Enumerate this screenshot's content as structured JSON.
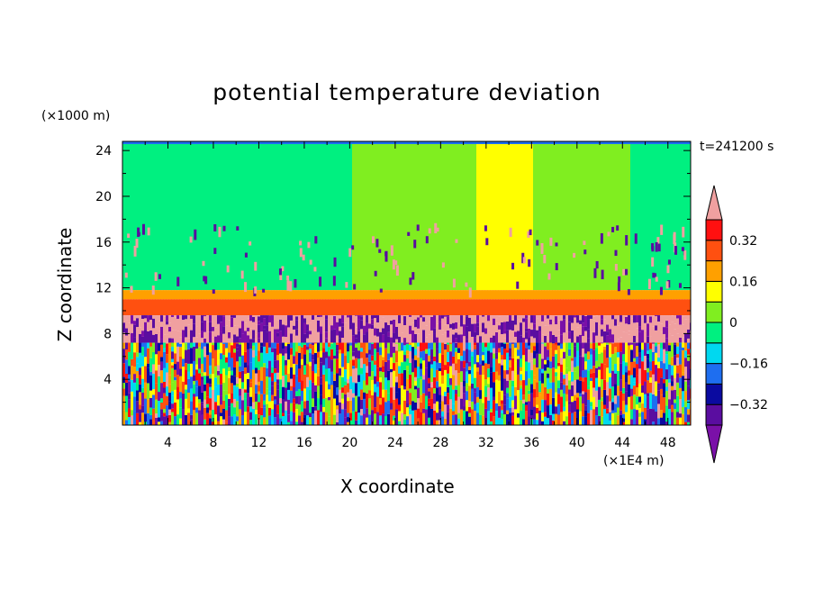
{
  "chart_data": {
    "type": "heatmap",
    "title": "potential temperature deviation",
    "xlabel": "X coordinate",
    "ylabel": "Z coordinate",
    "x_unit": "(×1E4 m)",
    "y_unit": "(×1000 m)",
    "time_label": "t=241200 s",
    "xlim": [
      0,
      50
    ],
    "ylim": [
      0,
      24.8
    ],
    "x_ticks": [
      4,
      8,
      12,
      16,
      20,
      24,
      28,
      32,
      36,
      40,
      44,
      48
    ],
    "y_ticks": [
      4,
      8,
      12,
      16,
      20,
      24
    ],
    "colorbar": {
      "levels": [
        -0.4,
        -0.32,
        -0.24,
        -0.16,
        -0.08,
        0,
        0.08,
        0.16,
        0.24,
        0.32,
        0.4
      ],
      "labels": [
        "0.32",
        "0.16",
        "0",
        "−0.16",
        "−0.32"
      ],
      "label_values": [
        0.32,
        0.16,
        0,
        -0.16,
        -0.32
      ],
      "colors": [
        "#7a10a8",
        "#5a0da0",
        "#0a0aa0",
        "#1e6ef0",
        "#00d8f0",
        "#00f080",
        "#80ee20",
        "#ffff00",
        "#ffa000",
        "#ff5010",
        "#ff1010",
        "#f0a0a0"
      ],
      "extend": "both"
    },
    "layers": [
      {
        "z_range": [
          0,
          7.2
        ],
        "description_value": "mixed",
        "values": [
          -0.4,
          0.4
        ]
      },
      {
        "z_range": [
          7.2,
          9.6
        ],
        "values": [
          0.4,
          -0.4
        ]
      },
      {
        "z_range": [
          9.6,
          11.0
        ],
        "values": [
          0.24,
          0.32
        ]
      },
      {
        "z_range": [
          11.0,
          11.8
        ],
        "values": [
          0.16,
          0.24
        ]
      },
      {
        "z_range": [
          11.8,
          24.8
        ],
        "values": [
          -0.08,
          0.16
        ]
      }
    ],
    "upper_columns": [
      {
        "x_range": [
          0,
          20
        ],
        "value": -0.04
      },
      {
        "x_range": [
          20,
          31
        ],
        "value": 0.04
      },
      {
        "x_range": [
          31,
          36
        ],
        "value": 0.12
      },
      {
        "x_range": [
          36,
          44.5
        ],
        "value": 0.04
      },
      {
        "x_range": [
          44.5,
          50
        ],
        "value": -0.04
      }
    ]
  }
}
